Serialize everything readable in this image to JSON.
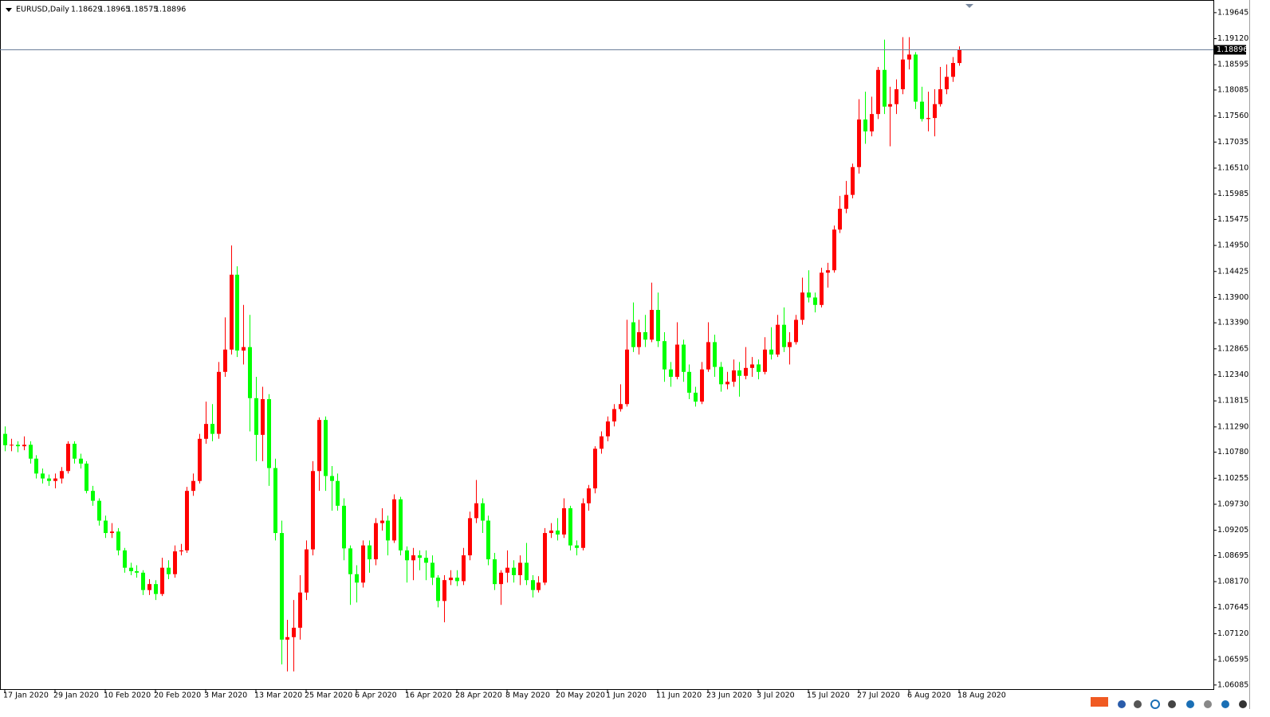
{
  "chart_data": {
    "type": "candlestick",
    "title": "EURUSD,Daily",
    "up_color": "#ff0000",
    "down_color": "#00ff00",
    "ylim": [
      1.0605,
      1.199
    ],
    "yticks": [
      1.19645,
      {
        "value": 1.1912,
        "label": "1.19120"
      },
      1.18595,
      1.18085,
      {
        "value": 1.1756,
        "label": "1.17560"
      },
      1.17035,
      {
        "value": 1.1651,
        "label": "1.16510"
      },
      1.15985,
      1.15475,
      {
        "value": 1.1495,
        "label": "1.14950"
      },
      1.14425,
      {
        "value": 1.139,
        "label": "1.13900"
      },
      {
        "value": 1.1339,
        "label": "1.13390"
      },
      1.12865,
      {
        "value": 1.1234,
        "label": "1.12340"
      },
      1.11815,
      {
        "value": 1.1129,
        "label": "1.11290"
      },
      {
        "value": 1.1078,
        "label": "1.10780"
      },
      1.10255,
      {
        "value": 1.0973,
        "label": "1.09730"
      },
      1.09205,
      1.08695,
      {
        "value": 1.0817,
        "label": "1.08170"
      },
      1.07645,
      {
        "value": 1.0712,
        "label": "1.07120"
      },
      1.06595,
      1.06085
    ],
    "categories": [
      "17 Jan 2020",
      null,
      null,
      null,
      null,
      null,
      null,
      null,
      "29 Jan 2020",
      null,
      null,
      null,
      null,
      null,
      null,
      null,
      "10 Feb 2020",
      null,
      null,
      null,
      null,
      null,
      null,
      null,
      "20 Feb 2020",
      null,
      null,
      null,
      null,
      null,
      null,
      null,
      "3 Mar 2020",
      null,
      null,
      null,
      null,
      null,
      null,
      null,
      "13 Mar 2020",
      null,
      null,
      null,
      null,
      null,
      null,
      null,
      "25 Mar 2020",
      null,
      null,
      null,
      null,
      null,
      null,
      null,
      "6 Apr 2020",
      null,
      null,
      null,
      null,
      null,
      null,
      null,
      "16 Apr 2020",
      null,
      null,
      null,
      null,
      null,
      null,
      null,
      "28 Apr 2020",
      null,
      null,
      null,
      null,
      null,
      null,
      null,
      "8 May 2020",
      null,
      null,
      null,
      null,
      null,
      null,
      null,
      "20 May 2020",
      null,
      null,
      null,
      null,
      null,
      null,
      null,
      "1 Jun 2020",
      null,
      null,
      null,
      null,
      null,
      null,
      null,
      "11 Jun 2020",
      null,
      null,
      null,
      null,
      null,
      null,
      null,
      "23 Jun 2020",
      null,
      null,
      null,
      null,
      null,
      null,
      null,
      "3 Jul 2020",
      null,
      null,
      null,
      null,
      null,
      null,
      null,
      "15 Jul 2020",
      null,
      null,
      null,
      null,
      null,
      null,
      null,
      "27 Jul 2020",
      null,
      null,
      null,
      null,
      null,
      null,
      null,
      "6 Aug 2020",
      null,
      null,
      null,
      null,
      null,
      null,
      null,
      "18 Aug 2020"
    ],
    "open": [
      1.1115,
      1.1092,
      1.1093,
      1.109,
      1.1093,
      1.1065,
      1.1035,
      1.1025,
      1.102,
      1.1025,
      1.104,
      1.1095,
      1.1065,
      1.1055,
      1.1,
      1.098,
      1.094,
      1.0915,
      1.0918,
      1.088,
      1.0845,
      1.0838,
      1.0835,
      1.08,
      1.0812,
      1.0792,
      1.0845,
      1.0832,
      1.0878,
      1.088,
      1.1,
      1.102,
      1.1105,
      1.1135,
      1.1115,
      1.124,
      1.1285,
      1.1436,
      1.1283,
      1.129,
      1.1187,
      1.1113,
      1.1185,
      1.1046,
      1.0915,
      1.07,
      1.0705,
      1.0724,
      1.0795,
      1.0882,
      1.104,
      1.1143,
      1.103,
      1.102,
      1.097,
      1.0884,
      1.0832,
      1.0815,
      1.089,
      1.0862,
      1.0935,
      1.094,
      1.09,
      1.0983,
      1.088,
      1.086,
      1.087,
      1.0865,
      1.0855,
      1.0825,
      1.0778,
      1.082,
      1.0825,
      1.0818,
      1.087,
      1.0945,
      1.0975,
      1.094,
      1.0862,
      1.0812,
      1.0835,
      1.0845,
      1.083,
      1.0855,
      1.082,
      1.08,
      1.0815,
      1.0915,
      1.092,
      1.0912,
      1.0965,
      1.089,
      1.0885,
      1.0975,
      1.1005,
      1.1085,
      1.111,
      1.114,
      1.1165,
      1.1175,
      1.134,
      1.129,
      1.132,
      1.1305,
      1.1365,
      1.1302,
      1.1245,
      1.123,
      1.1295,
      1.124,
      1.1198,
      1.118,
      1.1245,
      1.13,
      1.125,
      1.1215,
      1.122,
      1.1243,
      1.1232,
      1.1248,
      1.1255,
      1.124,
      1.1285,
      1.1275,
      1.1335,
      1.129,
      1.13,
      1.1345,
      1.14,
      1.139,
      1.1375,
      1.144,
      1.1445,
      1.1527,
      1.1569,
      1.1597,
      1.1653,
      1.1749,
      1.1725,
      1.176,
      1.1849,
      1.1775,
      1.178,
      1.181,
      1.187,
      1.188,
      1.1785,
      1.175,
      1.1752,
      1.178,
      1.181,
      1.1835,
      1.18629
    ],
    "high": [
      1.113,
      1.1105,
      1.11,
      1.111,
      1.11,
      1.1072,
      1.1045,
      1.1033,
      1.1035,
      1.1048,
      1.11,
      1.11,
      1.1075,
      1.106,
      1.101,
      1.0985,
      1.095,
      1.0935,
      1.0925,
      1.0885,
      1.0855,
      1.085,
      1.084,
      1.0822,
      1.082,
      1.0865,
      1.086,
      1.089,
      1.0893,
      1.1008,
      1.1035,
      1.1115,
      1.118,
      1.1175,
      1.126,
      1.135,
      1.1495,
      1.1453,
      1.1375,
      1.1355,
      1.123,
      1.121,
      1.1195,
      1.1065,
      1.094,
      1.074,
      1.078,
      1.083,
      1.09,
      1.106,
      1.1148,
      1.115,
      1.105,
      1.1035,
      1.0985,
      1.089,
      1.085,
      1.09,
      1.09,
      1.0945,
      1.0965,
      1.095,
      1.0993,
      1.0988,
      1.0888,
      1.0885,
      1.088,
      1.088,
      1.087,
      1.083,
      1.083,
      1.084,
      1.084,
      1.0885,
      1.0958,
      1.1022,
      1.0985,
      1.095,
      1.0875,
      1.084,
      1.088,
      1.086,
      1.087,
      1.0895,
      1.083,
      1.0828,
      1.0925,
      1.0935,
      1.0945,
      1.0985,
      1.097,
      1.09,
      1.0985,
      1.1012,
      1.109,
      1.112,
      1.115,
      1.1175,
      1.1215,
      1.1345,
      1.138,
      1.1345,
      1.1355,
      1.142,
      1.14,
      1.132,
      1.126,
      1.134,
      1.1305,
      1.1255,
      1.121,
      1.126,
      1.134,
      1.1315,
      1.126,
      1.124,
      1.1265,
      1.126,
      1.129,
      1.127,
      1.1265,
      1.131,
      1.133,
      1.1355,
      1.137,
      1.132,
      1.1355,
      1.143,
      1.1445,
      1.14,
      1.145,
      1.146,
      1.1535,
      1.1595,
      1.1625,
      1.166,
      1.179,
      1.1805,
      1.1795,
      1.1855,
      1.191,
      1.1815,
      1.183,
      1.1915,
      1.1915,
      1.1885,
      1.1815,
      1.1805,
      1.181,
      1.1855,
      1.186,
      1.1875,
      1.18965
    ],
    "low": [
      1.108,
      1.108,
      1.1078,
      1.1082,
      1.1055,
      1.1025,
      1.1015,
      1.101,
      1.1005,
      1.1015,
      1.1035,
      1.1055,
      1.1045,
      1.0995,
      1.097,
      1.093,
      1.0905,
      1.0905,
      1.087,
      1.0835,
      1.083,
      1.0825,
      1.079,
      1.079,
      1.078,
      1.0788,
      1.0822,
      1.0825,
      1.087,
      1.0875,
      1.099,
      1.1015,
      1.1095,
      1.11,
      1.1105,
      1.123,
      1.1275,
      1.127,
      1.1255,
      1.112,
      1.106,
      1.106,
      1.101,
      1.09,
      1.065,
      1.0636,
      1.0636,
      1.07,
      1.078,
      1.087,
      1.1,
      1.1,
      1.096,
      1.096,
      1.086,
      1.077,
      1.0775,
      1.0805,
      1.0835,
      1.085,
      1.092,
      1.087,
      1.0895,
      1.087,
      1.0815,
      1.082,
      1.084,
      1.082,
      1.081,
      1.0765,
      1.0735,
      1.081,
      1.0808,
      1.081,
      1.086,
      1.0935,
      1.0915,
      1.085,
      1.08,
      1.077,
      1.0815,
      1.0815,
      1.081,
      1.081,
      1.0785,
      1.0795,
      1.081,
      1.0905,
      1.09,
      1.0905,
      1.088,
      1.087,
      1.088,
      1.096,
      1.0995,
      1.1075,
      1.11,
      1.113,
      1.116,
      1.117,
      1.128,
      1.1275,
      1.129,
      1.13,
      1.129,
      1.122,
      1.121,
      1.1225,
      1.122,
      1.1185,
      1.117,
      1.1175,
      1.124,
      1.123,
      1.12,
      1.1205,
      1.121,
      1.119,
      1.1225,
      1.123,
      1.1225,
      1.1235,
      1.1265,
      1.127,
      1.128,
      1.1255,
      1.1295,
      1.1335,
      1.138,
      1.136,
      1.137,
      1.141,
      1.144,
      1.152,
      1.156,
      1.159,
      1.164,
      1.17,
      1.1715,
      1.175,
      1.176,
      1.1695,
      1.176,
      1.18,
      1.185,
      1.177,
      1.1745,
      1.1725,
      1.1715,
      1.1775,
      1.18,
      1.1825,
      1.18575
    ],
    "close": [
      1.1092,
      1.1093,
      1.109,
      1.1093,
      1.1065,
      1.1035,
      1.1025,
      1.102,
      1.1025,
      1.104,
      1.1095,
      1.1065,
      1.1055,
      1.1,
      1.098,
      1.094,
      1.0915,
      1.0918,
      1.088,
      1.0845,
      1.0838,
      1.0835,
      1.08,
      1.0812,
      1.0792,
      1.0845,
      1.0832,
      1.0878,
      1.088,
      1.1,
      1.102,
      1.1105,
      1.1135,
      1.1115,
      1.124,
      1.1285,
      1.1436,
      1.1283,
      1.129,
      1.1187,
      1.1113,
      1.1185,
      1.1046,
      1.0915,
      1.07,
      1.0705,
      1.0724,
      1.0795,
      1.0882,
      1.104,
      1.1143,
      1.103,
      1.102,
      1.097,
      1.0884,
      1.0832,
      1.0815,
      1.089,
      1.0862,
      1.0935,
      1.094,
      1.09,
      1.0983,
      1.088,
      1.086,
      1.087,
      1.0865,
      1.0855,
      1.0825,
      1.0778,
      1.082,
      1.0825,
      1.0818,
      1.087,
      1.0945,
      1.0975,
      1.094,
      1.0862,
      1.0812,
      1.0835,
      1.0845,
      1.083,
      1.0855,
      1.082,
      1.08,
      1.0815,
      1.0915,
      1.092,
      1.0912,
      1.0965,
      1.089,
      1.0885,
      1.0975,
      1.1005,
      1.1085,
      1.111,
      1.114,
      1.1165,
      1.1175,
      1.1285,
      1.129,
      1.132,
      1.1305,
      1.1365,
      1.1302,
      1.1245,
      1.123,
      1.1295,
      1.124,
      1.1198,
      1.118,
      1.1245,
      1.13,
      1.125,
      1.1215,
      1.122,
      1.1243,
      1.1232,
      1.1248,
      1.1255,
      1.124,
      1.1285,
      1.1275,
      1.1335,
      1.129,
      1.13,
      1.1345,
      1.14,
      1.139,
      1.1375,
      1.144,
      1.1445,
      1.1527,
      1.1569,
      1.1597,
      1.1653,
      1.1749,
      1.1725,
      1.176,
      1.1849,
      1.1775,
      1.178,
      1.181,
      1.187,
      1.188,
      1.1785,
      1.175,
      1.1752,
      1.178,
      1.181,
      1.1835,
      1.1863,
      1.18896
    ]
  }
}
